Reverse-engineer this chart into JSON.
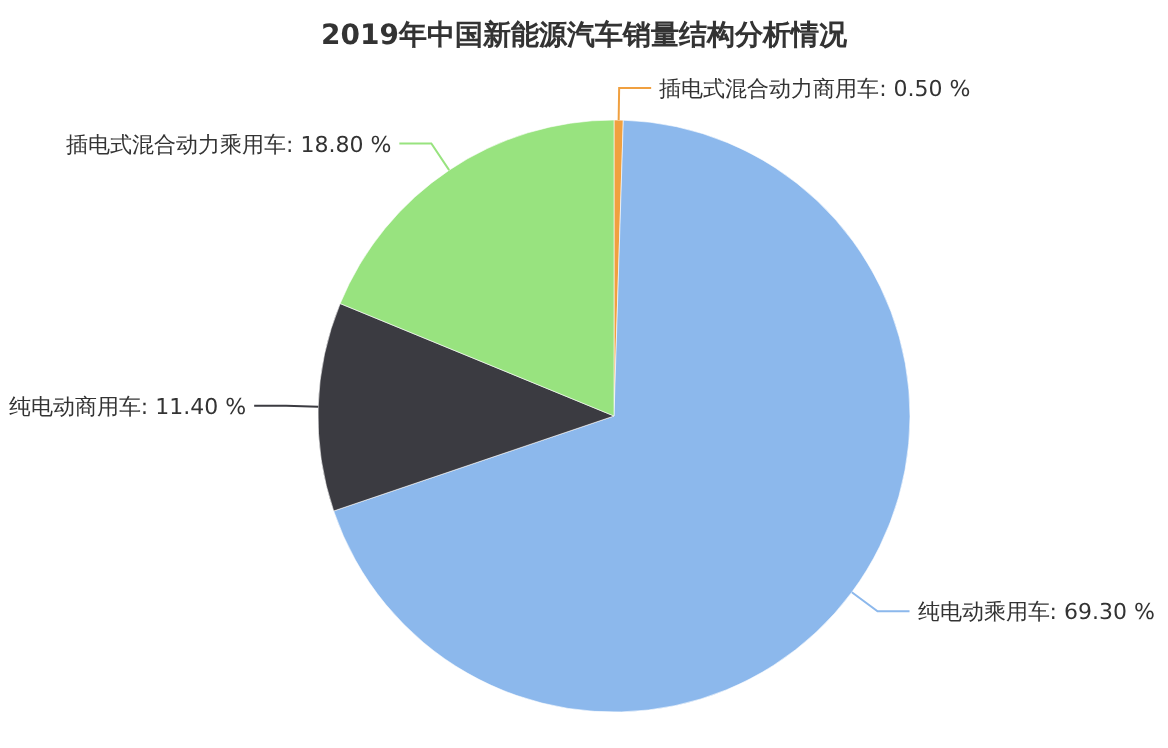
{
  "chart_data": {
    "type": "pie",
    "title": "2019年中国新能源汽车销量结构分析情况",
    "categories": [
      "插电式混合动力商用车",
      "纯电动乘用车",
      "纯电动商用车",
      "插电式混合动力乘用车"
    ],
    "values": [
      0.5,
      69.3,
      11.4,
      18.8
    ],
    "colors": [
      "#f0a040",
      "#8cb8ec",
      "#3b3b41",
      "#98e37f"
    ],
    "value_labels": [
      "0.50 %",
      "69.30 %",
      "11.40 %",
      "18.80 %"
    ]
  }
}
